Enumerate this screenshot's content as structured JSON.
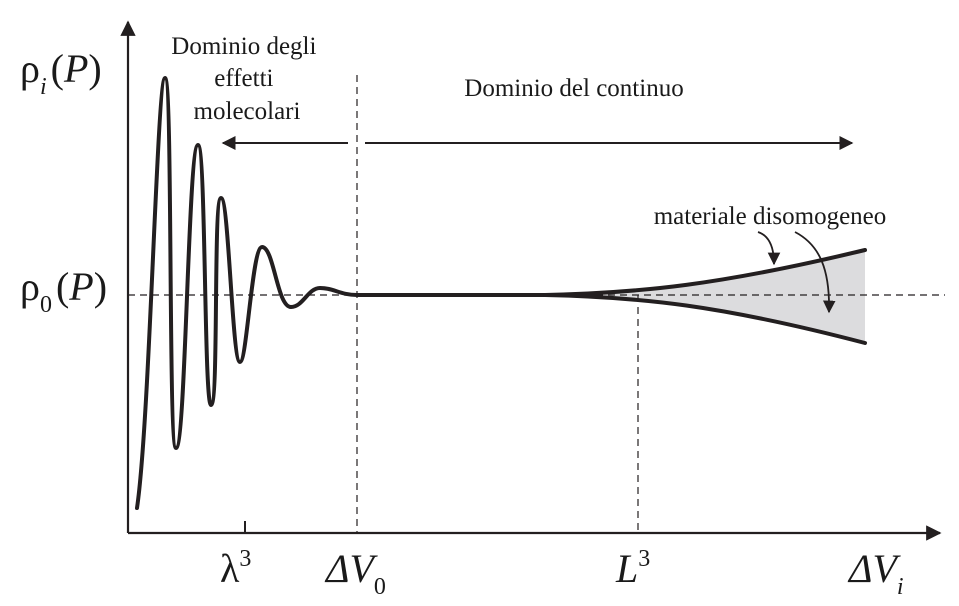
{
  "diagram": {
    "y_axis": {
      "top_label": {
        "symbol": "ρ",
        "subscript": "i",
        "argument": "(P)"
      },
      "ref_label": {
        "symbol": "ρ",
        "subscript": "0",
        "argument": "(P)"
      }
    },
    "x_axis": {
      "lambda_tick": {
        "symbol": "λ",
        "superscript": "3"
      },
      "dv0_tick": {
        "symbol": "ΔV",
        "subscript": "0"
      },
      "l3_tick": {
        "symbol": "L",
        "superscript": "3"
      },
      "dvi_label": {
        "symbol": "ΔV",
        "subscript": "i"
      }
    },
    "regions": {
      "molecular": [
        "Dominio degli",
        "effetti",
        "molecolari"
      ],
      "continuum": "Dominio del continuo"
    },
    "annotation": "materiale disomogeneo",
    "colors": {
      "curve": "#231f20",
      "shaded_region": "#dcdcde",
      "text": "#1a1a1a"
    }
  }
}
